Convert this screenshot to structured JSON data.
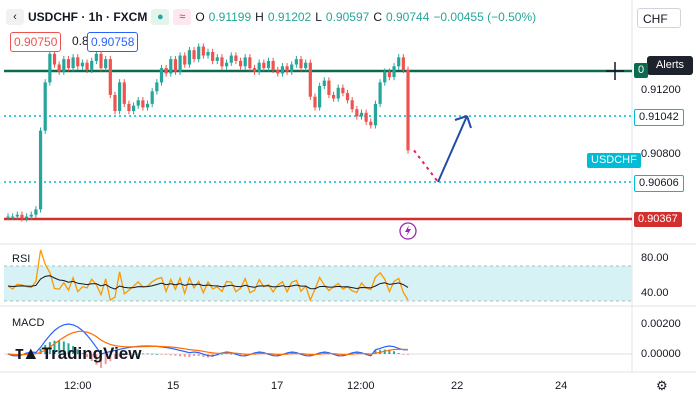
{
  "header": {
    "symbol": "USDCHF · 1h · FXCM",
    "o_label": "O",
    "o_value": "0.91199",
    "h_label": "H",
    "h_value": "0.91202",
    "l_label": "L",
    "l_value": "0.90597",
    "c_label": "C",
    "c_value": "0.90744",
    "change": "−0.00455 (−0.50%)",
    "bid": "0.90750",
    "spread": "0.8",
    "ask": "0.90758",
    "currency": "CHF",
    "alerts_label": "Alerts"
  },
  "price_pane": {
    "axis_ticks": [
      "0.91200",
      "0.90800"
    ],
    "tags": {
      "resistance": "0",
      "dotted_upper": "0.91042",
      "symbol_tag": "USDCHF",
      "dotted_lower": "0.90606",
      "support": "0.90367"
    }
  },
  "rsi_pane": {
    "label": "RSI",
    "axis_ticks": [
      "80.00",
      "40.00"
    ]
  },
  "macd_pane": {
    "label": "MACD",
    "axis_ticks": [
      "0.00200",
      "0.00000"
    ]
  },
  "time_axis": [
    "12:00",
    "15",
    "17",
    "12:00",
    "22",
    "24"
  ],
  "logo_text": "TradingView",
  "colors": {
    "up": "#26a69a",
    "down": "#ef5350",
    "resistance": "#0b6b4e",
    "support": "#d32f2f",
    "dotted": "#00bcd4",
    "arrow": "#1f4fa3",
    "rsi_line": "#ff9800",
    "rsi_band": "#d6f2f5",
    "macd": "#2962ff",
    "signal": "#ff6d00"
  },
  "icons": [
    "flash-icon",
    "settings-icon",
    "crosshair-icon"
  ],
  "chart_data": {
    "type": "candlestick",
    "ylim": [
      0.9025,
      0.9148
    ],
    "closes": [
      0.9037,
      0.9037,
      0.9038,
      0.9036,
      0.9037,
      0.9038,
      0.9041,
      0.9085,
      0.9112,
      0.9128,
      0.9122,
      0.9118,
      0.9125,
      0.912,
      0.9126,
      0.9121,
      0.9123,
      0.9119,
      0.9124,
      0.9128,
      0.912,
      0.9125,
      0.9105,
      0.9096,
      0.9112,
      0.91,
      0.9096,
      0.9099,
      0.9102,
      0.9098,
      0.91,
      0.9107,
      0.9112,
      0.912,
      0.9117,
      0.9125,
      0.9118,
      0.9127,
      0.9122,
      0.913,
      0.9125,
      0.9132,
      0.9127,
      0.9129,
      0.9124,
      0.9126,
      0.9121,
      0.9123,
      0.9127,
      0.9124,
      0.9121,
      0.9126,
      0.912,
      0.9118,
      0.9123,
      0.912,
      0.9124,
      0.9119,
      0.9117,
      0.9121,
      0.9118,
      0.9122,
      0.9125,
      0.912,
      0.9123,
      0.9104,
      0.9098,
      0.911,
      0.9113,
      0.9105,
      0.9103,
      0.9109,
      0.9106,
      0.9102,
      0.9097,
      0.9093,
      0.9095,
      0.909,
      0.9088,
      0.91,
      0.9112,
      0.9118,
      0.9115,
      0.9121,
      0.9126,
      0.9119,
      0.9074
    ]
  }
}
